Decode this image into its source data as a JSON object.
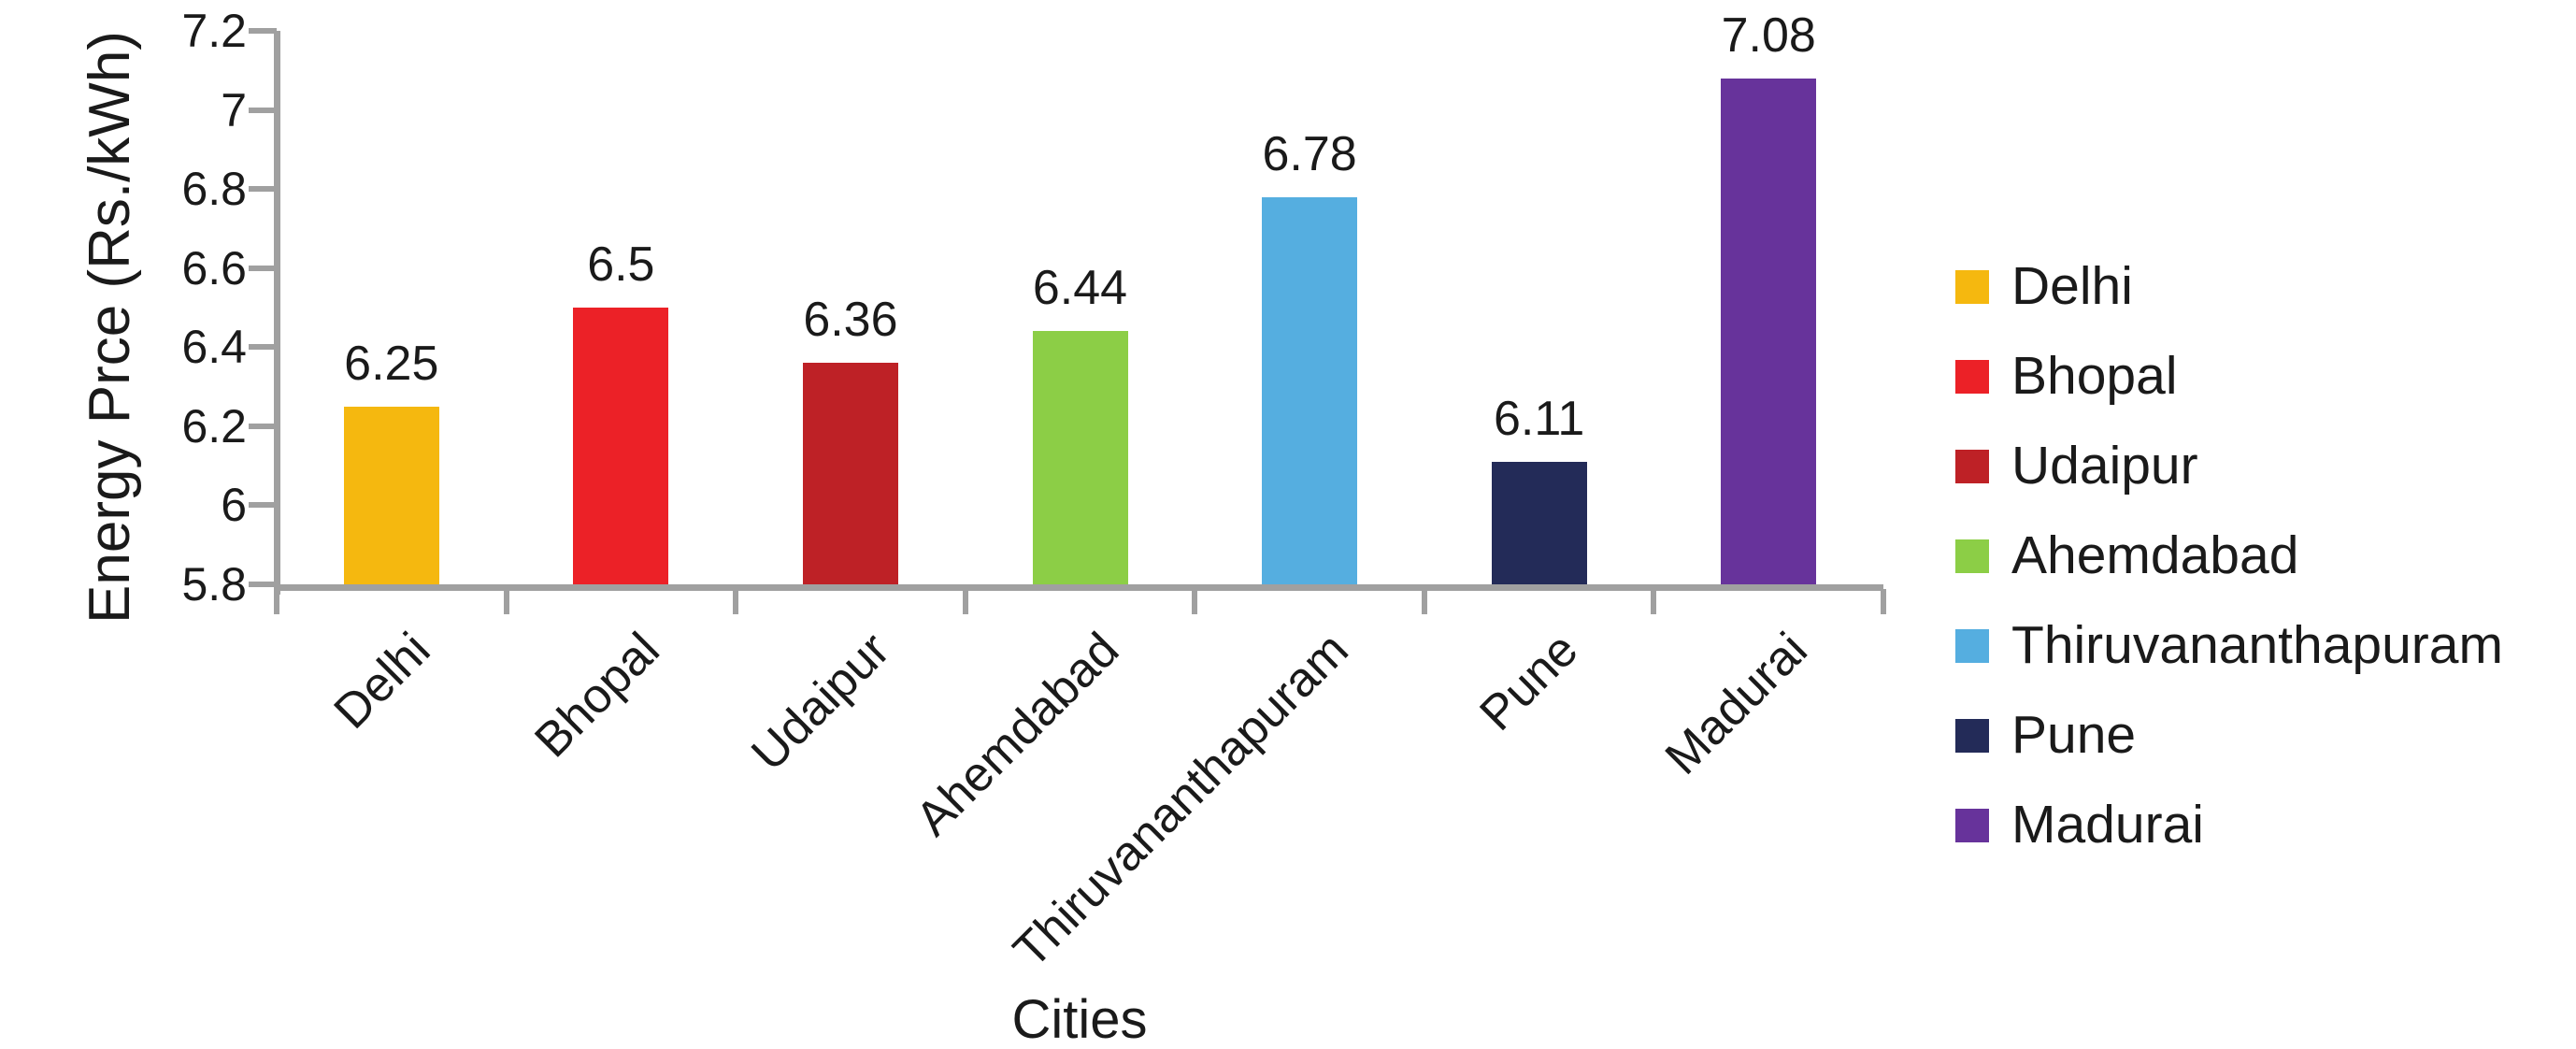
{
  "chart_data": {
    "type": "bar",
    "title": "",
    "xlabel": "Cities",
    "ylabel": "Energy Prce (Rs./kWh)",
    "categories": [
      "Delhi",
      "Bhopal",
      "Udaipur",
      "Ahemdabad",
      "Thiruvananthapuram",
      "Pune",
      "Madurai"
    ],
    "values": [
      6.25,
      6.5,
      6.36,
      6.44,
      6.78,
      6.11,
      7.08
    ],
    "data_labels": [
      "6.25",
      "6.5",
      "6.36",
      "6.44",
      "6.78",
      "6.11",
      "7.08"
    ],
    "bar_colors": [
      "#F5B80F",
      "#EC2127",
      "#BE2126",
      "#8CCE46",
      "#55AEE0",
      "#232B58",
      "#67339B"
    ],
    "ylim": [
      5.8,
      7.2
    ],
    "ytick_step": 0.2,
    "yticks": [
      "7.2",
      "7",
      "6.8",
      "6.6",
      "6.4",
      "6.2",
      "6",
      "5.8"
    ],
    "ytick_values": [
      7.2,
      7.0,
      6.8,
      6.6,
      6.4,
      6.2,
      6.0,
      5.8
    ],
    "grid": false,
    "legend": {
      "position": "right",
      "entries": [
        "Delhi",
        "Bhopal",
        "Udaipur",
        "Ahemdabad",
        "Thiruvananthapuram",
        "Pune",
        "Madurai"
      ]
    },
    "axis_color": "#A0A0A0",
    "text_color": "#1A1A1A"
  }
}
